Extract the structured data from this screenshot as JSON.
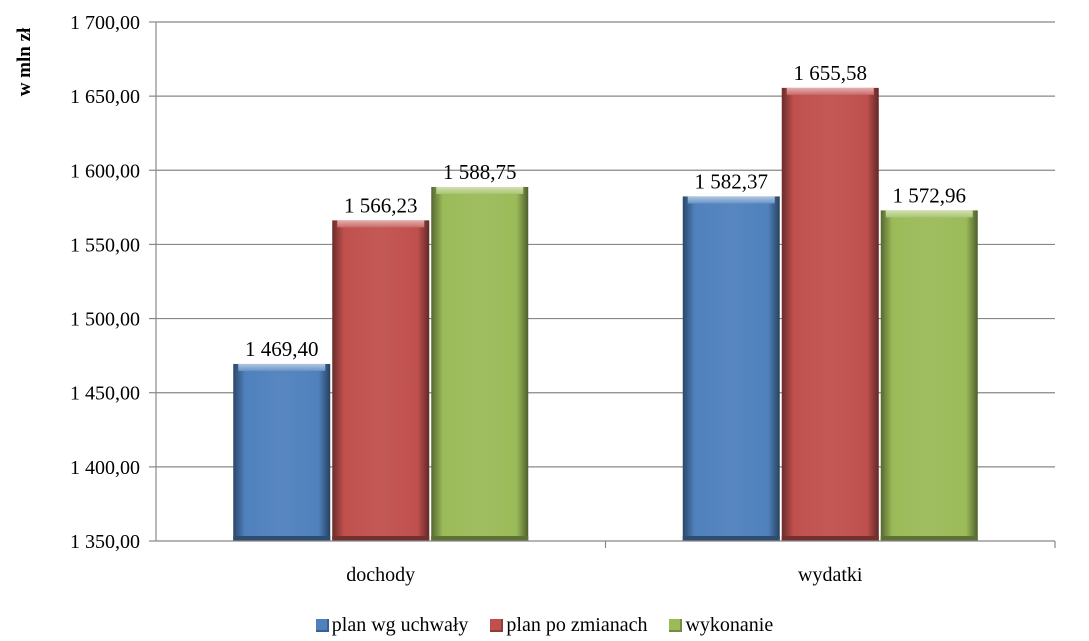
{
  "chart_data": {
    "type": "bar",
    "title": "",
    "xlabel": "",
    "ylabel": "w mln zł",
    "ylim": [
      1350,
      1700
    ],
    "yticks": [
      "1 350,00",
      "1 400,00",
      "1 450,00",
      "1 500,00",
      "1 550,00",
      "1 600,00",
      "1 650,00",
      "1 700,00"
    ],
    "ytick_values": [
      1350,
      1400,
      1450,
      1500,
      1550,
      1600,
      1650,
      1700
    ],
    "grid": true,
    "legend_position": "bottom",
    "categories": [
      "dochody",
      "wydatki"
    ],
    "series": [
      {
        "name": "plan wg uchwały",
        "color": "#4F81BD",
        "values": [
          1469.4,
          1582.37
        ],
        "labels": [
          "1 469,40",
          "1 582,37"
        ]
      },
      {
        "name": "plan po zmianach",
        "color": "#C0504D",
        "values": [
          1566.23,
          1655.58
        ],
        "labels": [
          "1 566,23",
          "1 655,58"
        ]
      },
      {
        "name": "wykonanie",
        "color": "#9BBB59",
        "values": [
          1588.75,
          1572.96
        ],
        "labels": [
          "1 588,75",
          "1 572,96"
        ]
      }
    ]
  }
}
